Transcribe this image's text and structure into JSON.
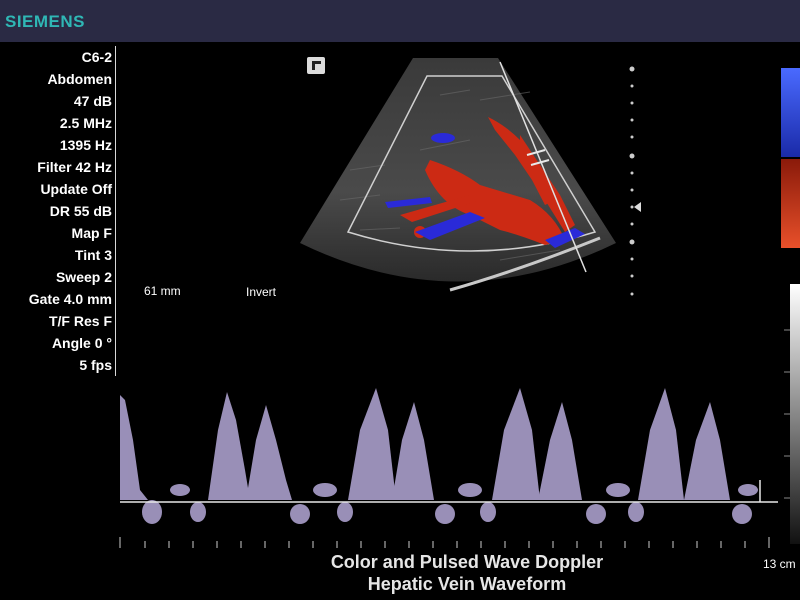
{
  "brand": {
    "name": "SIEMENS",
    "color": "#2fb7b5"
  },
  "parameters": [
    "C6-2",
    "Abdomen",
    "47 dB",
    "2.5 MHz",
    "1395 Hz",
    "Filter 42 Hz",
    "Update Off",
    "DR 55 dB",
    "Map F",
    "Tint 3",
    "Sweep 2",
    "Gate 4.0 mm",
    "T/F Res F",
    "Angle 0 °",
    "5 fps"
  ],
  "image": {
    "depth_label": "61 mm",
    "invert_label": "Invert"
  },
  "spectral": {
    "depth_label": "13 cm"
  },
  "caption": {
    "line1": "Color and Pulsed Wave Doppler",
    "line2": "Hepatic Vein Waveform"
  },
  "colors": {
    "flow_red": "#cc2a14",
    "flow_blue": "#2a2ad8",
    "waveform": "#b4a8d8"
  }
}
